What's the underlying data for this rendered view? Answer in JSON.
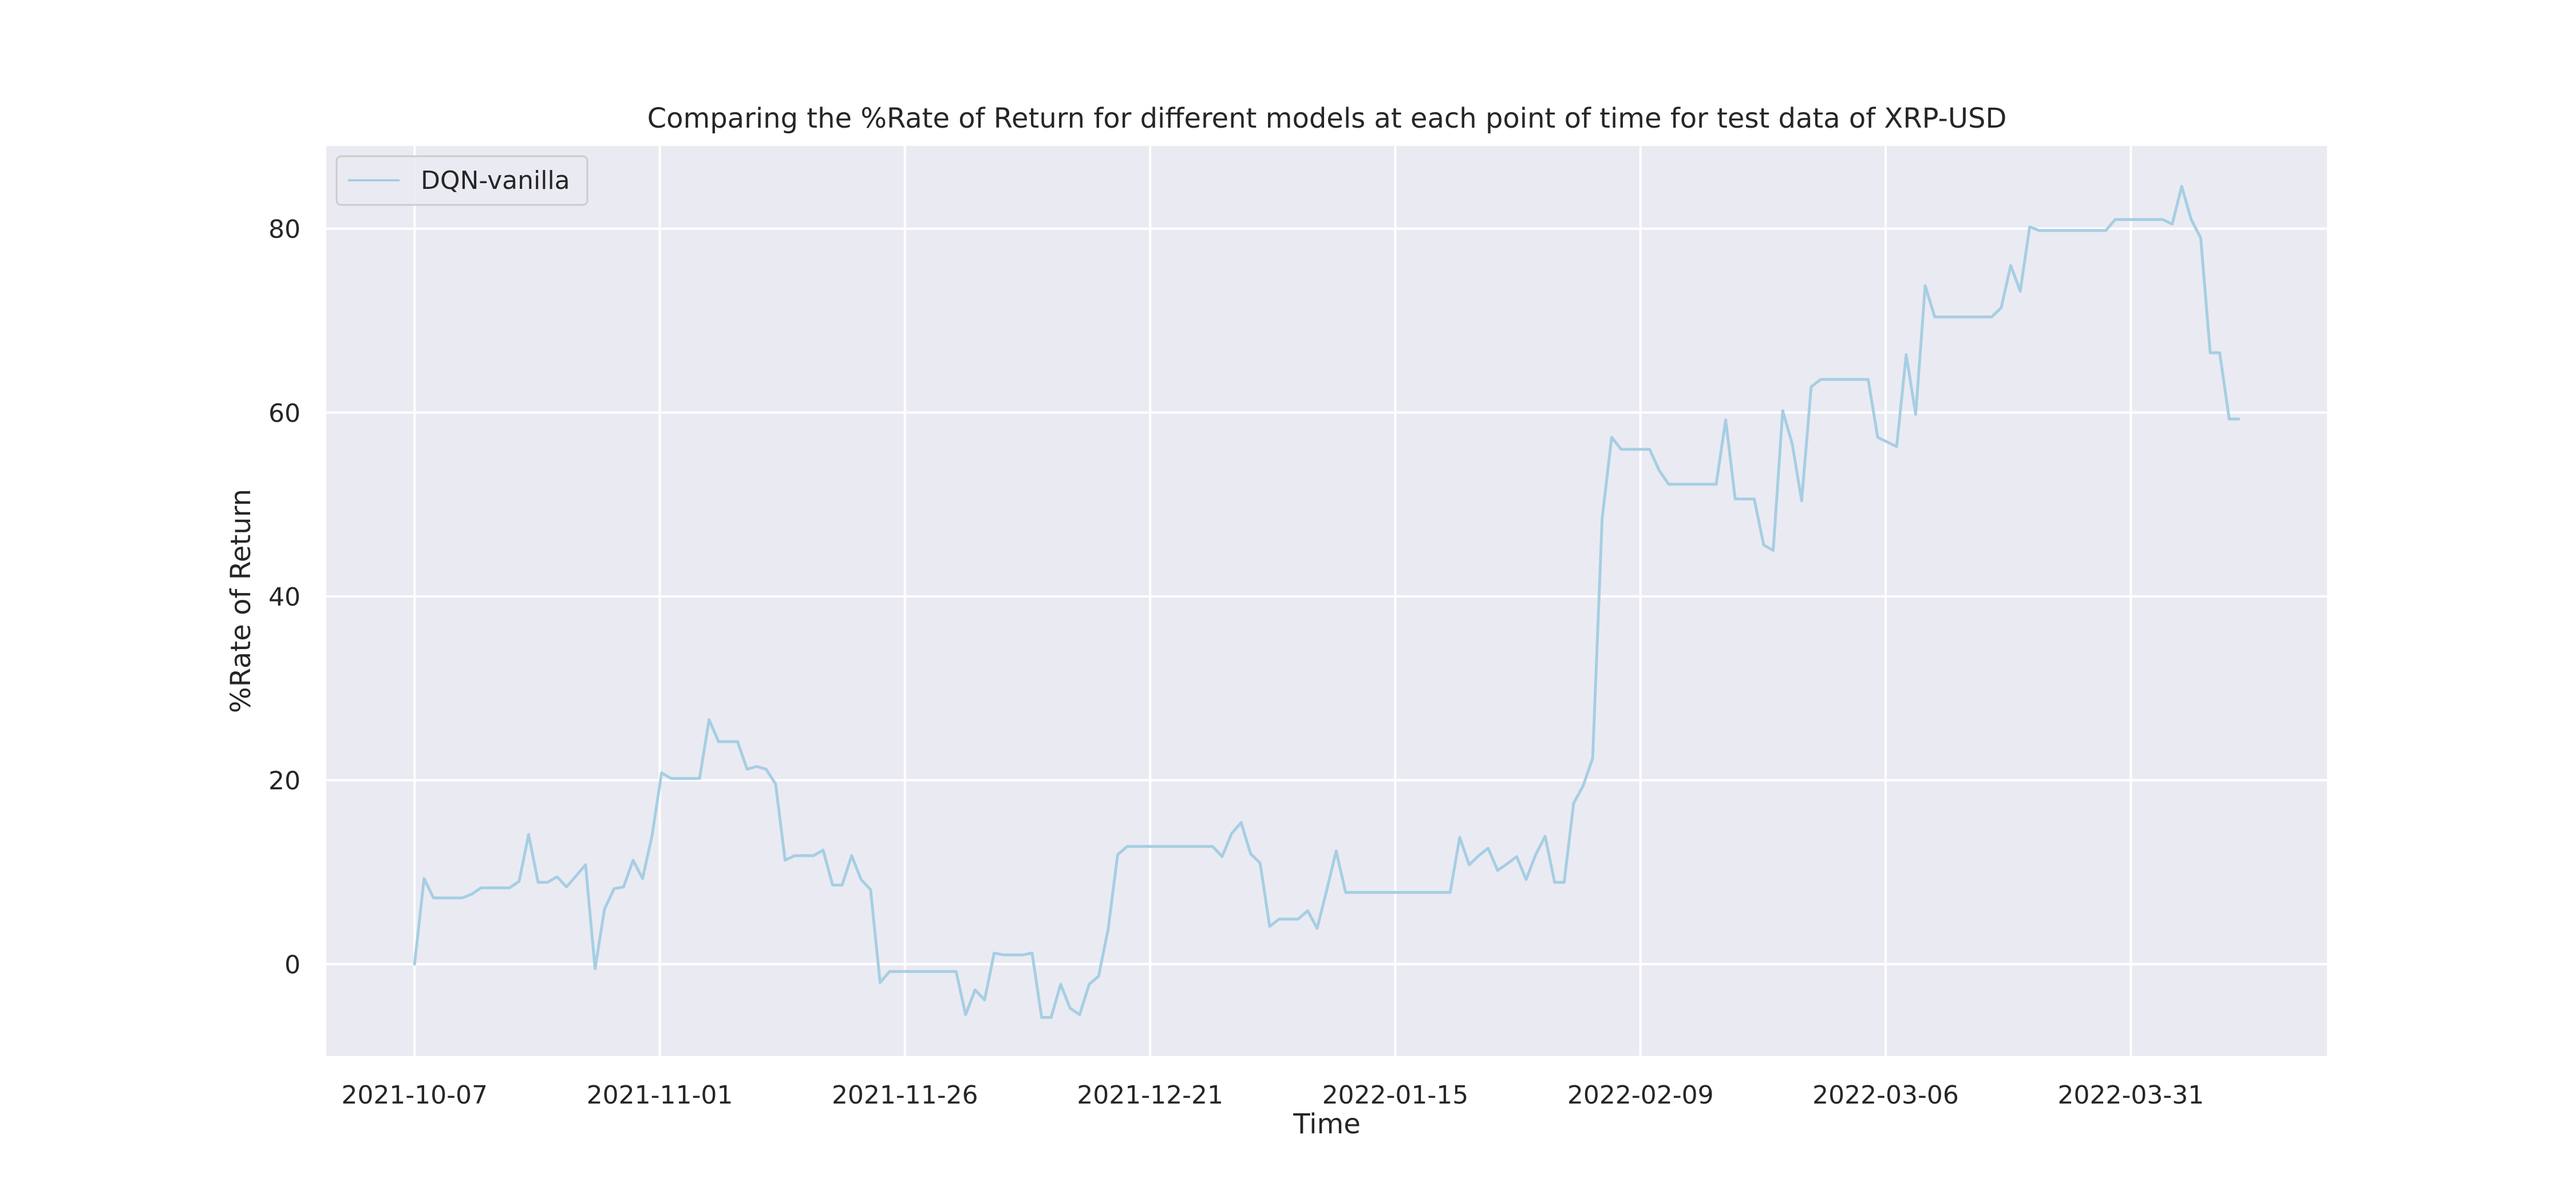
{
  "chart_data": {
    "type": "line",
    "title": "Comparing the %Rate of Return for different models at each point of time for test data of XRP-USD",
    "xlabel": "Time",
    "ylabel": "%Rate of Return",
    "grid": true,
    "legend_position": "top-left",
    "x_start": "2021-10-07",
    "x_end": "2022-04-11",
    "xlim": [
      "2021-09-28",
      "2022-04-20"
    ],
    "ylim": [
      -10,
      89
    ],
    "x_ticks": [
      "2021-10-07",
      "2021-11-01",
      "2021-11-26",
      "2021-12-21",
      "2022-01-15",
      "2022-02-09",
      "2022-03-06",
      "2022-03-31"
    ],
    "y_ticks": [
      0,
      20,
      40,
      60,
      80
    ],
    "colors": {
      "plot_bg": "#eaeaf2",
      "grid": "#ffffff",
      "line": "#a6cee3"
    },
    "series": [
      {
        "name": "DQN-vanilla",
        "values": [
          0.0,
          9.3,
          7.2,
          7.2,
          7.2,
          7.2,
          7.6,
          8.3,
          8.3,
          8.3,
          8.3,
          9.0,
          14.1,
          8.9,
          8.9,
          9.5,
          8.4,
          9.6,
          10.8,
          -0.5,
          6.0,
          8.2,
          8.4,
          11.3,
          9.3,
          14.0,
          20.8,
          20.2,
          20.2,
          20.2,
          20.2,
          26.6,
          24.2,
          24.2,
          24.2,
          21.2,
          21.5,
          21.2,
          19.6,
          11.3,
          11.8,
          11.8,
          11.8,
          12.4,
          8.6,
          8.6,
          11.8,
          9.2,
          8.1,
          -2.0,
          -0.8,
          -0.8,
          -0.8,
          -0.8,
          -0.8,
          -0.8,
          -0.8,
          -0.8,
          -5.5,
          -2.8,
          -3.9,
          1.2,
          1.0,
          1.0,
          1.0,
          1.2,
          -5.8,
          -5.8,
          -2.2,
          -4.8,
          -5.5,
          -2.2,
          -1.3,
          3.8,
          11.9,
          12.8,
          12.8,
          12.8,
          12.8,
          12.8,
          12.8,
          12.8,
          12.8,
          12.8,
          12.8,
          11.7,
          14.2,
          15.4,
          12.0,
          11.0,
          4.1,
          4.9,
          4.9,
          4.9,
          5.8,
          3.9,
          8.0,
          12.3,
          7.8,
          7.8,
          7.8,
          7.8,
          7.8,
          7.8,
          7.8,
          7.8,
          7.8,
          7.8,
          7.8,
          7.8,
          13.8,
          10.8,
          11.8,
          12.6,
          10.2,
          10.9,
          11.7,
          9.2,
          11.9,
          13.9,
          8.9,
          8.9,
          17.5,
          19.4,
          22.4,
          48.5,
          57.3,
          56.0,
          56.0,
          56.0,
          56.0,
          53.7,
          52.2,
          52.2,
          52.2,
          52.2,
          52.2,
          52.2,
          59.2,
          50.6,
          50.6,
          50.6,
          45.6,
          45.0,
          60.2,
          56.6,
          50.4,
          62.8,
          63.6,
          63.6,
          63.6,
          63.6,
          63.6,
          63.6,
          57.3,
          56.8,
          56.3,
          66.3,
          59.8,
          73.8,
          70.4,
          70.4,
          70.4,
          70.4,
          70.4,
          70.4,
          70.4,
          71.4,
          76.0,
          73.2,
          80.2,
          79.8,
          79.8,
          79.8,
          79.8,
          79.8,
          79.8,
          79.8,
          79.8,
          81.0,
          81.0,
          81.0,
          81.0,
          81.0,
          81.0,
          80.5,
          84.6,
          81.0,
          79.0,
          66.5,
          66.5,
          59.3,
          59.3
        ]
      }
    ]
  }
}
